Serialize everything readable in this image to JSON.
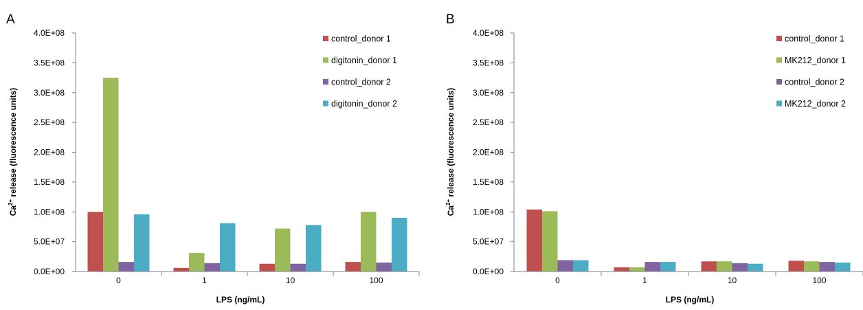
{
  "panels": [
    {
      "letter": "A",
      "xlabel": "LPS (ng/mL)",
      "ylabel_main": "Ca",
      "ylabel_sup": "2+",
      "ylabel_rest": " release (fluorescence units)"
    },
    {
      "letter": "B",
      "xlabel": "LPS (ng/mL)",
      "ylabel_main": "Ca",
      "ylabel_sup": "2+",
      "ylabel_rest": " release (fluorescence units)"
    }
  ],
  "colors": {
    "series1": "#c0504d",
    "series2": "#9bbb59",
    "series3": "#8064a2",
    "series4": "#4bacc6",
    "axis": "#7f7f7f"
  },
  "chart_data": [
    {
      "type": "bar",
      "panel": "A",
      "categories": [
        "0",
        "1",
        "10",
        "100"
      ],
      "ylim": [
        0,
        400000000
      ],
      "yticks": [
        0,
        50000000,
        100000000,
        150000000,
        200000000,
        250000000,
        300000000,
        350000000,
        400000000
      ],
      "ytick_labels": [
        "0.0E+00",
        "5.0E+07",
        "1.0E+08",
        "1.5E+08",
        "2.0E+08",
        "2.5E+08",
        "3.0E+08",
        "3.5E+08",
        "4.0E+08"
      ],
      "xlabel": "LPS (ng/mL)",
      "ylabel": "Ca2+ release (fluorescence units)",
      "grid": false,
      "legend_position": "top-right",
      "series": [
        {
          "name": "control_donor 1",
          "values": [
            100000000,
            6000000,
            13000000,
            16000000
          ]
        },
        {
          "name": "digitonin_donor 1",
          "values": [
            325000000,
            31000000,
            72000000,
            100000000
          ]
        },
        {
          "name": "control_donor 2",
          "values": [
            16000000,
            14000000,
            13000000,
            15000000
          ]
        },
        {
          "name": "digitonin_donor 2",
          "values": [
            96000000,
            81000000,
            78000000,
            90000000
          ]
        }
      ]
    },
    {
      "type": "bar",
      "panel": "B",
      "categories": [
        "0",
        "1",
        "10",
        "100"
      ],
      "ylim": [
        0,
        400000000
      ],
      "yticks": [
        0,
        50000000,
        100000000,
        150000000,
        200000000,
        250000000,
        300000000,
        350000000,
        400000000
      ],
      "ytick_labels": [
        "0.0E+00",
        "5.0E+07",
        "1.0E+08",
        "1.5E+08",
        "2.0E+08",
        "2.5E+08",
        "3.0E+08",
        "3.5E+08",
        "4.0E+08"
      ],
      "xlabel": "LPS (ng/mL)",
      "ylabel": "Ca2+ release (fluorescence units)",
      "grid": false,
      "legend_position": "top-right",
      "series": [
        {
          "name": "control_donor 1",
          "values": [
            104000000,
            7000000,
            17000000,
            18000000
          ]
        },
        {
          "name": "MK212_donor 1",
          "values": [
            101000000,
            7000000,
            17000000,
            17000000
          ]
        },
        {
          "name": "control_donor 2",
          "values": [
            19000000,
            16000000,
            14000000,
            16000000
          ]
        },
        {
          "name": "MK212_donor 2",
          "values": [
            19000000,
            16000000,
            13000000,
            15000000
          ]
        }
      ]
    }
  ]
}
